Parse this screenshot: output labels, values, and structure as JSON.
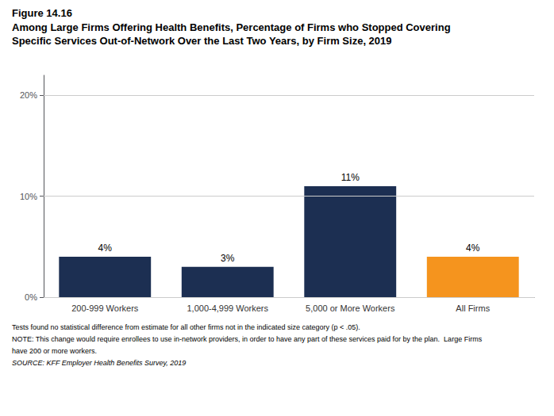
{
  "chart_data": {
    "type": "bar",
    "annotations": [
      "Figure 14.16"
    ],
    "title": [
      "Among Large Firms Offering Health Benefits, Percentage of Firms who Stopped Covering",
      "Specific Services Out-of-Network Over the Last Two Years, by Firm Size, 2019"
    ],
    "footnotes": [
      "Tests found no statistical difference from estimate for all other firms not in the indicated size category (p < .05).",
      "NOTE: This change would require enrollees to use in-network providers, in order to have any part of these services paid for by the plan.  Large Firms",
      "have 200 or more workers.",
      "SOURCE: KFF Employer Health Benefits Survey, 2019"
    ],
    "categories": [
      "200-999 Workers",
      "1,000-4,999 Workers",
      "5,000 or More Workers",
      "All Firms"
    ],
    "values": [
      4,
      3,
      11,
      4
    ],
    "value_labels": [
      "4%",
      "3%",
      "11%",
      "4%"
    ],
    "data_labels": true,
    "colors": [
      "#1c2f52",
      "#1c2f52",
      "#1c2f52",
      "#f5941e"
    ],
    "ylim": [
      0,
      22
    ],
    "yticks": [
      {
        "value": 0,
        "label": "0%"
      },
      {
        "value": 10,
        "label": "10%"
      },
      {
        "value": 20,
        "label": "20%"
      }
    ],
    "grid": true
  }
}
